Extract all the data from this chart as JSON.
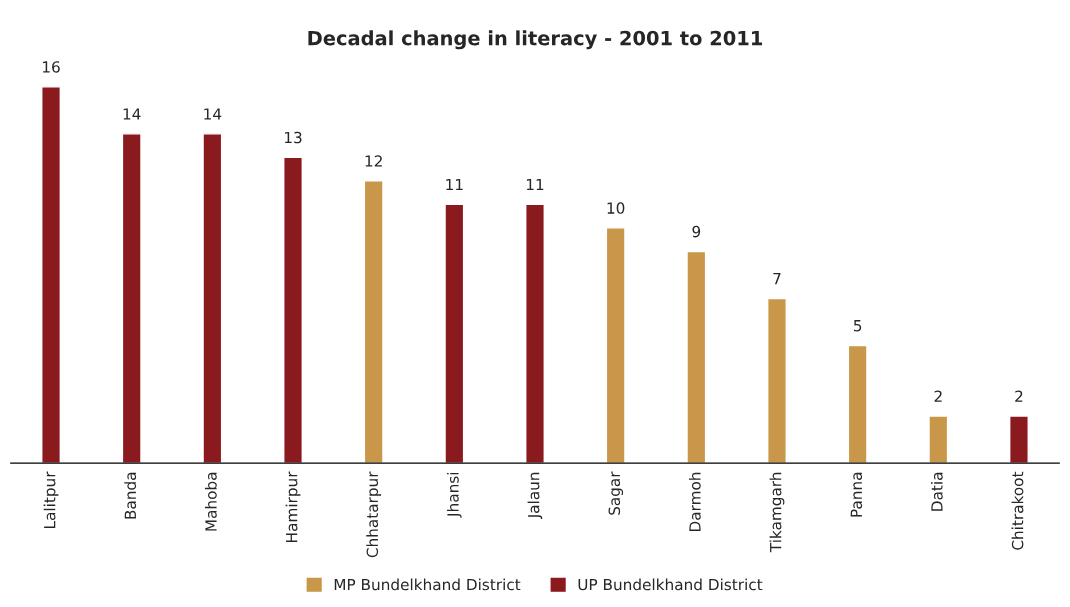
{
  "chart_data": {
    "type": "bar",
    "title": "Decadal change in literacy - 2001 to 2011",
    "categories": [
      "Lalitpur",
      "Banda",
      "Mahoba",
      "Hamirpur",
      "Chhatarpur",
      "Jhansi",
      "Jalaun",
      "Sagar",
      "Darmoh",
      "Tikamgarh",
      "Panna",
      "Datia",
      "Chitrakoot"
    ],
    "series": [
      {
        "name": "MP Bundelkhand District",
        "color": "#c9974a",
        "values": [
          null,
          null,
          null,
          null,
          12,
          null,
          null,
          10,
          9,
          7,
          5,
          2,
          null
        ]
      },
      {
        "name": "UP Bundelkhand District",
        "color": "#8b1a1f",
        "values": [
          16,
          14,
          14,
          13,
          null,
          11,
          11,
          null,
          null,
          null,
          null,
          null,
          2
        ]
      }
    ],
    "data_labels": true,
    "legend": "bottom",
    "grid": false
  }
}
